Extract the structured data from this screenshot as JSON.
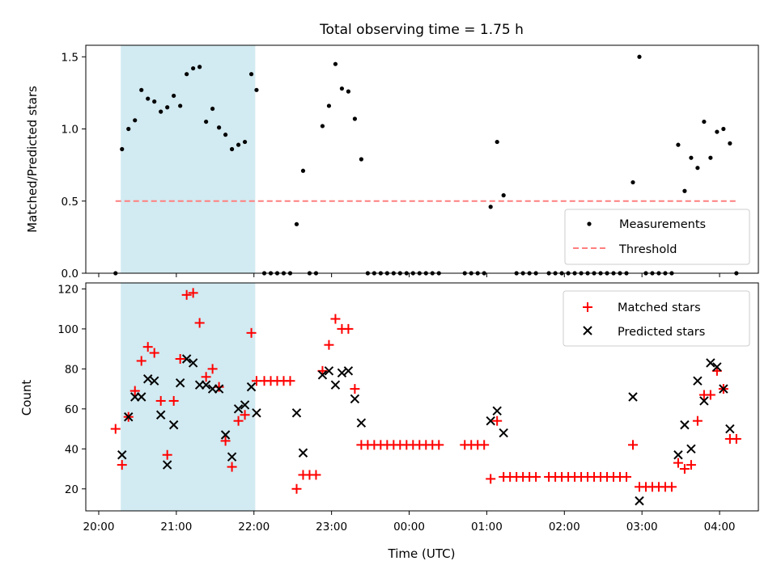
{
  "chart_data": [
    {
      "type": "scatter",
      "title": "Total observing time = 1.75 h",
      "xlabel": "",
      "ylabel": "Matched/Predicted stars",
      "ylim": [
        0,
        1.58
      ],
      "yticks": [
        "0.0",
        "0.5",
        "1.0",
        "1.5"
      ],
      "ytick_values": [
        0,
        0.5,
        1.0,
        1.5
      ],
      "xlim": [
        "19:50",
        "04:30"
      ],
      "highlight_span": [
        "20:17",
        "22:01"
      ],
      "highlight_color": "#add8e6",
      "grid": false,
      "legend_position": "lower right",
      "series": [
        {
          "name": "Measurements",
          "marker": "dot",
          "color": "#000000",
          "points": [
            [
              "20:13",
              0
            ],
            [
              "20:18",
              0.86
            ],
            [
              "20:23",
              1.0
            ],
            [
              "20:28",
              1.06
            ],
            [
              "20:33",
              1.27
            ],
            [
              "20:38",
              1.21
            ],
            [
              "20:43",
              1.19
            ],
            [
              "20:48",
              1.12
            ],
            [
              "20:53",
              1.15
            ],
            [
              "20:58",
              1.23
            ],
            [
              "21:03",
              1.16
            ],
            [
              "21:08",
              1.38
            ],
            [
              "21:13",
              1.42
            ],
            [
              "21:18",
              1.43
            ],
            [
              "21:23",
              1.05
            ],
            [
              "21:28",
              1.14
            ],
            [
              "21:33",
              1.01
            ],
            [
              "21:38",
              0.96
            ],
            [
              "21:43",
              0.86
            ],
            [
              "21:48",
              0.89
            ],
            [
              "21:53",
              0.91
            ],
            [
              "21:58",
              1.38
            ],
            [
              "22:02",
              1.27
            ],
            [
              "22:08",
              0
            ],
            [
              "22:13",
              0
            ],
            [
              "22:18",
              0
            ],
            [
              "22:23",
              0
            ],
            [
              "22:28",
              0
            ],
            [
              "22:33",
              0.34
            ],
            [
              "22:38",
              0.71
            ],
            [
              "22:43",
              0
            ],
            [
              "22:48",
              0
            ],
            [
              "22:53",
              1.02
            ],
            [
              "22:58",
              1.16
            ],
            [
              "23:03",
              1.45
            ],
            [
              "23:08",
              1.28
            ],
            [
              "23:13",
              1.26
            ],
            [
              "23:18",
              1.07
            ],
            [
              "23:23",
              0.79
            ],
            [
              "23:28",
              0
            ],
            [
              "23:33",
              0
            ],
            [
              "23:38",
              0
            ],
            [
              "23:43",
              0
            ],
            [
              "23:48",
              0
            ],
            [
              "23:53",
              0
            ],
            [
              "23:58",
              0
            ],
            [
              "00:03",
              0
            ],
            [
              "00:08",
              0
            ],
            [
              "00:13",
              0
            ],
            [
              "00:18",
              0
            ],
            [
              "00:23",
              0
            ],
            [
              "00:43",
              0
            ],
            [
              "00:48",
              0
            ],
            [
              "00:53",
              0
            ],
            [
              "00:58",
              0
            ],
            [
              "01:03",
              0.46
            ],
            [
              "01:08",
              0.91
            ],
            [
              "01:13",
              0.54
            ],
            [
              "01:23",
              0
            ],
            [
              "01:28",
              0
            ],
            [
              "01:33",
              0
            ],
            [
              "01:38",
              0
            ],
            [
              "01:48",
              0
            ],
            [
              "01:53",
              0
            ],
            [
              "01:58",
              0
            ],
            [
              "02:03",
              0
            ],
            [
              "02:08",
              0
            ],
            [
              "02:13",
              0
            ],
            [
              "02:18",
              0
            ],
            [
              "02:23",
              0
            ],
            [
              "02:28",
              0
            ],
            [
              "02:33",
              0
            ],
            [
              "02:38",
              0
            ],
            [
              "02:43",
              0
            ],
            [
              "02:48",
              0
            ],
            [
              "02:53",
              0.63
            ],
            [
              "02:58",
              1.5
            ],
            [
              "03:03",
              0
            ],
            [
              "03:08",
              0
            ],
            [
              "03:13",
              0
            ],
            [
              "03:18",
              0
            ],
            [
              "03:23",
              0
            ],
            [
              "03:28",
              0.89
            ],
            [
              "03:33",
              0.57
            ],
            [
              "03:38",
              0.8
            ],
            [
              "03:43",
              0.73
            ],
            [
              "03:48",
              1.05
            ],
            [
              "03:53",
              0.8
            ],
            [
              "03:58",
              0.98
            ],
            [
              "04:03",
              1.0
            ],
            [
              "04:08",
              0.9
            ],
            [
              "04:13",
              0
            ]
          ]
        },
        {
          "name": "Threshold",
          "style": "dashed",
          "color": "#ff7f7f",
          "points": [
            [
              "20:13",
              0.5
            ],
            [
              "04:13",
              0.5
            ]
          ]
        }
      ]
    },
    {
      "type": "scatter",
      "title": "",
      "xlabel": "Time (UTC)",
      "ylabel": "Count",
      "ylim": [
        9,
        123
      ],
      "yticks": [
        "20",
        "40",
        "60",
        "80",
        "100",
        "120"
      ],
      "ytick_values": [
        20,
        40,
        60,
        80,
        100,
        120
      ],
      "xlim": [
        "19:50",
        "04:30"
      ],
      "xticks": [
        "20:00",
        "21:00",
        "22:00",
        "23:00",
        "00:00",
        "01:00",
        "02:00",
        "03:00",
        "04:00"
      ],
      "highlight_span": [
        "20:17",
        "22:01"
      ],
      "highlight_color": "#add8e6",
      "grid": false,
      "legend_position": "upper right",
      "series": [
        {
          "name": "Matched stars",
          "marker": "plus",
          "color": "#ff0000",
          "points": [
            [
              "20:13",
              50
            ],
            [
              "20:18",
              32
            ],
            [
              "20:23",
              56
            ],
            [
              "20:28",
              69
            ],
            [
              "20:33",
              84
            ],
            [
              "20:38",
              91
            ],
            [
              "20:43",
              88
            ],
            [
              "20:48",
              64
            ],
            [
              "20:53",
              37
            ],
            [
              "20:58",
              64
            ],
            [
              "21:03",
              85
            ],
            [
              "21:08",
              117
            ],
            [
              "21:13",
              118
            ],
            [
              "21:18",
              103
            ],
            [
              "21:23",
              76
            ],
            [
              "21:28",
              80
            ],
            [
              "21:33",
              71
            ],
            [
              "21:38",
              44
            ],
            [
              "21:43",
              31
            ],
            [
              "21:48",
              54
            ],
            [
              "21:53",
              57
            ],
            [
              "21:58",
              98
            ],
            [
              "22:02",
              74
            ],
            [
              "22:08",
              74
            ],
            [
              "22:13",
              74
            ],
            [
              "22:18",
              74
            ],
            [
              "22:23",
              74
            ],
            [
              "22:28",
              74
            ],
            [
              "22:33",
              20
            ],
            [
              "22:38",
              27
            ],
            [
              "22:43",
              27
            ],
            [
              "22:48",
              27
            ],
            [
              "22:53",
              79
            ],
            [
              "22:58",
              92
            ],
            [
              "23:03",
              105
            ],
            [
              "23:08",
              100
            ],
            [
              "23:13",
              100
            ],
            [
              "23:18",
              70
            ],
            [
              "23:23",
              42
            ],
            [
              "23:28",
              42
            ],
            [
              "23:33",
              42
            ],
            [
              "23:38",
              42
            ],
            [
              "23:43",
              42
            ],
            [
              "23:48",
              42
            ],
            [
              "23:53",
              42
            ],
            [
              "23:58",
              42
            ],
            [
              "00:03",
              42
            ],
            [
              "00:08",
              42
            ],
            [
              "00:13",
              42
            ],
            [
              "00:18",
              42
            ],
            [
              "00:23",
              42
            ],
            [
              "00:43",
              42
            ],
            [
              "00:48",
              42
            ],
            [
              "00:53",
              42
            ],
            [
              "00:58",
              42
            ],
            [
              "01:03",
              25
            ],
            [
              "01:08",
              54
            ],
            [
              "01:13",
              26
            ],
            [
              "01:18",
              26
            ],
            [
              "01:23",
              26
            ],
            [
              "01:28",
              26
            ],
            [
              "01:33",
              26
            ],
            [
              "01:38",
              26
            ],
            [
              "01:48",
              26
            ],
            [
              "01:53",
              26
            ],
            [
              "01:58",
              26
            ],
            [
              "02:03",
              26
            ],
            [
              "02:08",
              26
            ],
            [
              "02:13",
              26
            ],
            [
              "02:18",
              26
            ],
            [
              "02:23",
              26
            ],
            [
              "02:28",
              26
            ],
            [
              "02:33",
              26
            ],
            [
              "02:38",
              26
            ],
            [
              "02:43",
              26
            ],
            [
              "02:48",
              26
            ],
            [
              "02:53",
              42
            ],
            [
              "02:58",
              21
            ],
            [
              "03:03",
              21
            ],
            [
              "03:08",
              21
            ],
            [
              "03:13",
              21
            ],
            [
              "03:18",
              21
            ],
            [
              "03:23",
              21
            ],
            [
              "03:28",
              33
            ],
            [
              "03:33",
              30
            ],
            [
              "03:38",
              32
            ],
            [
              "03:43",
              54
            ],
            [
              "03:48",
              67
            ],
            [
              "03:53",
              67
            ],
            [
              "03:58",
              79
            ],
            [
              "04:03",
              70
            ],
            [
              "04:08",
              45
            ],
            [
              "04:13",
              45
            ]
          ]
        },
        {
          "name": "Predicted stars",
          "marker": "x",
          "color": "#000000",
          "points": [
            [
              "20:18",
              37
            ],
            [
              "20:23",
              56
            ],
            [
              "20:28",
              66
            ],
            [
              "20:33",
              66
            ],
            [
              "20:38",
              75
            ],
            [
              "20:43",
              74
            ],
            [
              "20:48",
              57
            ],
            [
              "20:53",
              32
            ],
            [
              "20:58",
              52
            ],
            [
              "21:03",
              73
            ],
            [
              "21:08",
              85
            ],
            [
              "21:13",
              83
            ],
            [
              "21:18",
              72
            ],
            [
              "21:23",
              72
            ],
            [
              "21:28",
              70
            ],
            [
              "21:33",
              70
            ],
            [
              "21:38",
              47
            ],
            [
              "21:43",
              36
            ],
            [
              "21:48",
              60
            ],
            [
              "21:53",
              62
            ],
            [
              "21:58",
              71
            ],
            [
              "22:02",
              58
            ],
            [
              "22:33",
              58
            ],
            [
              "22:38",
              38
            ],
            [
              "22:53",
              77
            ],
            [
              "22:58",
              79
            ],
            [
              "23:03",
              72
            ],
            [
              "23:08",
              78
            ],
            [
              "23:13",
              79
            ],
            [
              "23:18",
              65
            ],
            [
              "23:23",
              53
            ],
            [
              "01:03",
              54
            ],
            [
              "01:08",
              59
            ],
            [
              "01:13",
              48
            ],
            [
              "02:53",
              66
            ],
            [
              "02:58",
              14
            ],
            [
              "03:28",
              37
            ],
            [
              "03:33",
              52
            ],
            [
              "03:38",
              40
            ],
            [
              "03:43",
              74
            ],
            [
              "03:48",
              64
            ],
            [
              "03:53",
              83
            ],
            [
              "03:58",
              81
            ],
            [
              "04:03",
              70
            ],
            [
              "04:08",
              50
            ]
          ]
        }
      ]
    }
  ]
}
